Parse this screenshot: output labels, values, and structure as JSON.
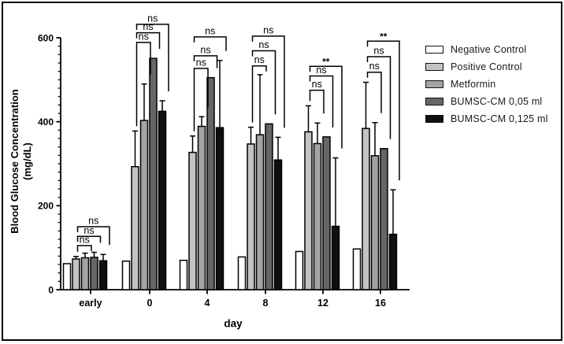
{
  "frame": {
    "border_color": "#000000",
    "background": "#ffffff"
  },
  "chart_data": {
    "type": "bar",
    "title": "",
    "xlabel": "day",
    "ylabel": "Blood Glucose Concentration",
    "ylabel_unit": "(mg/dL)",
    "categories": [
      "early",
      "0",
      "4",
      "8",
      "12",
      "16"
    ],
    "ylim": [
      0,
      600
    ],
    "yticks": [
      0,
      200,
      400,
      600
    ],
    "minor_tick_step": 20,
    "legend_position": "right",
    "grid": false,
    "axis_color": "#000000",
    "series": [
      {
        "name": "Negative Control",
        "fill": "#ffffff",
        "values": [
          62,
          68,
          70,
          78,
          91,
          97
        ],
        "errors": [
          0,
          0,
          0,
          0,
          0,
          0
        ]
      },
      {
        "name": "Positive Control",
        "fill": "#c3c3c3",
        "values": [
          73,
          293,
          327,
          347,
          376,
          384
        ],
        "errors": [
          6,
          85,
          39,
          40,
          62,
          110
        ]
      },
      {
        "name": "Metformin",
        "fill": "#a3a3a3",
        "values": [
          76,
          403,
          389,
          369,
          348,
          319
        ],
        "errors": [
          11,
          87,
          23,
          143,
          49,
          79
        ]
      },
      {
        "name": "BUMSC-CM 0,05 ml",
        "fill": "#666666",
        "values": [
          77,
          551,
          505,
          395,
          364,
          336
        ],
        "errors": [
          12,
          0,
          0,
          0,
          0,
          0
        ]
      },
      {
        "name": "BUMSC-CM 0,125 ml",
        "fill": "#0f0f0f",
        "values": [
          69,
          425,
          386,
          309,
          151,
          132
        ],
        "errors": [
          15,
          25,
          160,
          54,
          163,
          106
        ]
      }
    ],
    "significance_brackets": [
      {
        "category": "early",
        "from": "Positive Control",
        "comparisons": [
          {
            "to": "Metformin",
            "label": "ns",
            "level": 105
          },
          {
            "to": "BUMSC-CM 0,05 ml",
            "label": "ns",
            "level": 127
          },
          {
            "to": "BUMSC-CM 0,125 ml",
            "label": "ns",
            "level": 150
          }
        ]
      },
      {
        "category": "0",
        "from": "Positive Control",
        "comparisons": [
          {
            "to": "Metformin",
            "label": "ns",
            "level": 589
          },
          {
            "to": "BUMSC-CM 0,05 ml",
            "label": "ns",
            "level": 612
          },
          {
            "to": "BUMSC-CM 0,125 ml",
            "label": "ns",
            "level": 632
          }
        ]
      },
      {
        "category": "4",
        "from": "Positive Control",
        "comparisons": [
          {
            "to": "Metformin",
            "label": "ns",
            "level": 527
          },
          {
            "to": "BUMSC-CM 0,05 ml",
            "label": "ns",
            "level": 557
          },
          {
            "to": "BUMSC-CM 0,125 ml",
            "label": "ns",
            "level": 602
          }
        ]
      },
      {
        "category": "8",
        "from": "Positive Control",
        "comparisons": [
          {
            "to": "Metformin",
            "label": "ns",
            "level": 533
          },
          {
            "to": "BUMSC-CM 0,05 ml",
            "label": "ns",
            "level": 569
          },
          {
            "to": "BUMSC-CM 0,125 ml",
            "label": "ns",
            "level": 604
          }
        ]
      },
      {
        "category": "12",
        "from": "Positive Control",
        "comparisons": [
          {
            "to": "Metformin",
            "label": "ns",
            "level": 475
          },
          {
            "to": "BUMSC-CM 0,05 ml",
            "label": "ns",
            "level": 509
          },
          {
            "to": "BUMSC-CM 0,125 ml",
            "label": "**",
            "level": 532
          }
        ]
      },
      {
        "category": "16",
        "from": "Positive Control",
        "comparisons": [
          {
            "to": "Metformin",
            "label": "ns",
            "level": 518
          },
          {
            "to": "BUMSC-CM 0,05 ml",
            "label": "ns",
            "level": 555
          },
          {
            "to": "BUMSC-CM 0,125 ml",
            "label": "**",
            "level": 592
          }
        ]
      }
    ]
  }
}
